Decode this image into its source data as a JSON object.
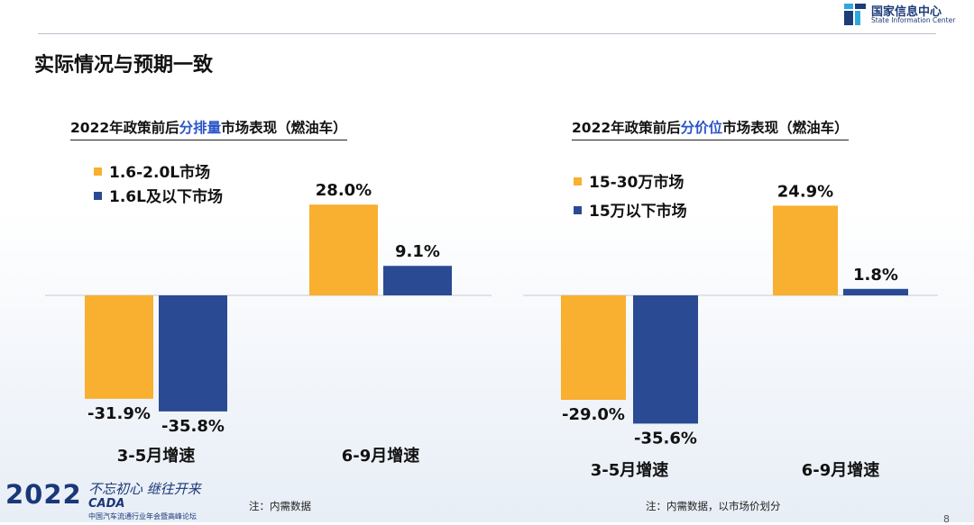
{
  "header": {
    "logo_cn": "国家信息中心",
    "logo_en": "State Information Center",
    "page_title": "实际情况与预期一致"
  },
  "colors": {
    "orange": "#F9AF2F",
    "navy": "#2A4A93",
    "highlight": "#2B56C8"
  },
  "left_panel": {
    "title_pre": "2022年政策前后",
    "title_hl": "分排量",
    "title_post": "市场表现（燃油车）",
    "legend": [
      {
        "label": "1.6-2.0L市场",
        "color": "#F9AF2F"
      },
      {
        "label": "1.6L及以下市场",
        "color": "#2A4A93"
      }
    ],
    "footnote": "注：内需数据"
  },
  "right_panel": {
    "title_pre": "2022年政策前后",
    "title_hl": "分价位",
    "title_post": "市场表现（燃油车）",
    "legend": [
      {
        "label": "15-30万市场",
        "color": "#F9AF2F"
      },
      {
        "label": "15万以下市场",
        "color": "#2A4A93"
      }
    ],
    "footnote": "注：内需数据，以市场价划分"
  },
  "chart_data": [
    {
      "type": "bar",
      "categories": [
        "3-5月增速",
        "6-9月增速"
      ],
      "series": [
        {
          "name": "1.6-2.0L市场",
          "values": [
            -31.9,
            28.0
          ],
          "labels": [
            "-31.9%",
            "28.0%"
          ],
          "color": "#F9AF2F"
        },
        {
          "name": "1.6L及以下市场",
          "values": [
            -35.8,
            9.1
          ],
          "labels": [
            "-35.8%",
            "9.1%"
          ],
          "color": "#2A4A93"
        }
      ],
      "title": "2022年政策前后分排量市场表现（燃油车）",
      "unit": "%",
      "grid": false
    },
    {
      "type": "bar",
      "categories": [
        "3-5月增速",
        "6-9月增速"
      ],
      "series": [
        {
          "name": "15-30万市场",
          "values": [
            -29.0,
            24.9
          ],
          "labels": [
            "-29.0%",
            "24.9%"
          ],
          "color": "#F9AF2F"
        },
        {
          "name": "15万以下市场",
          "values": [
            -35.6,
            1.8
          ],
          "labels": [
            "-35.6%",
            "1.8%"
          ],
          "color": "#2A4A93"
        }
      ],
      "title": "2022年政策前后分价位市场表现（燃油车）",
      "unit": "%",
      "grid": false
    }
  ],
  "footer": {
    "year": "2022",
    "slogan": "不忘初心 继往开来",
    "brand": "CADA",
    "forum": "中国汽车流通行业年会暨高峰论坛",
    "page_number": "8"
  }
}
